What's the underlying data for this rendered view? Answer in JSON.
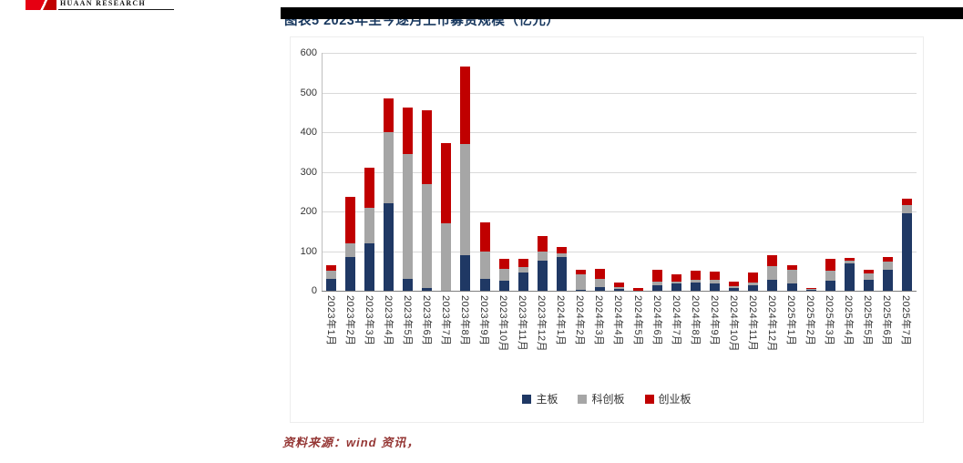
{
  "header": {
    "logo_text": "HUAAN RESEARCH",
    "title": "图表5 2023年至今逐月上市募资规模（亿元）"
  },
  "chart_data": {
    "type": "bar",
    "stacked": true,
    "title": "图表5 2023年至今逐月上市募资规模（亿元）",
    "ylabel": "",
    "xlabel": "",
    "ylim": [
      0,
      600
    ],
    "yticks": [
      0,
      100,
      200,
      300,
      400,
      500,
      600
    ],
    "grid": true,
    "legend_position": "bottom",
    "categories": [
      "2023年1月",
      "2023年2月",
      "2023年3月",
      "2023年4月",
      "2023年5月",
      "2023年6月",
      "2023年7月",
      "2023年8月",
      "2023年9月",
      "2023年10月",
      "2023年11月",
      "2023年12月",
      "2024年1月",
      "2024年2月",
      "2024年3月",
      "2024年4月",
      "2024年5月",
      "2024年6月",
      "2024年7月",
      "2024年8月",
      "2024年9月",
      "2024年10月",
      "2024年11月",
      "2024年12月",
      "2025年1月",
      "2025年2月",
      "2025年3月",
      "2025年4月",
      "2025年5月",
      "2025年6月",
      "2025年7月"
    ],
    "series": [
      {
        "name": "主板",
        "color": "#1f3864",
        "values": [
          30,
          85,
          120,
          220,
          30,
          8,
          0,
          90,
          30,
          25,
          45,
          75,
          85,
          3,
          10,
          5,
          0,
          15,
          18,
          20,
          18,
          8,
          14,
          28,
          18,
          2,
          25,
          68,
          28,
          52,
          195
        ]
      },
      {
        "name": "科创板",
        "color": "#a6a6a6",
        "values": [
          20,
          35,
          90,
          180,
          315,
          260,
          170,
          280,
          70,
          30,
          15,
          25,
          10,
          38,
          20,
          5,
          0,
          8,
          6,
          8,
          10,
          4,
          6,
          34,
          36,
          2,
          25,
          7,
          15,
          22,
          22
        ]
      },
      {
        "name": "创业板",
        "color": "#c00000",
        "values": [
          15,
          118,
          100,
          85,
          117,
          187,
          202,
          195,
          72,
          25,
          20,
          37,
          15,
          12,
          25,
          10,
          8,
          29,
          18,
          22,
          20,
          12,
          26,
          28,
          10,
          2,
          30,
          8,
          10,
          12,
          16
        ]
      }
    ]
  },
  "footer": {
    "source": "资料来源：wind 资讯，"
  }
}
